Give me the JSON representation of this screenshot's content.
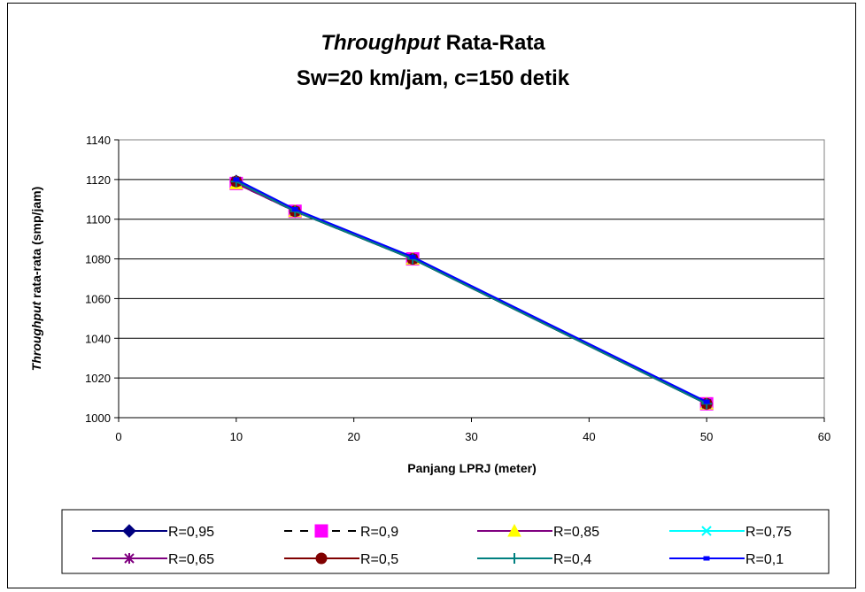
{
  "chart_data": {
    "type": "line",
    "title": {
      "italic": "Throughput",
      "rest": " Rata-Rata"
    },
    "subtitle": "Sw=20 km/jam, c=150 detik",
    "xlabel": "Panjang LPRJ (meter)",
    "ylabel": {
      "italic": "Throughput",
      "rest": " rata-rata (smp/jam)"
    },
    "xlim": [
      0,
      60
    ],
    "ylim": [
      1000,
      1140
    ],
    "xticks": [
      0,
      10,
      20,
      30,
      40,
      50,
      60
    ],
    "yticks": [
      1000,
      1020,
      1040,
      1060,
      1080,
      1100,
      1120,
      1140
    ],
    "grid": "horizontal",
    "legend_position": "bottom",
    "x": [
      10,
      15,
      25,
      50
    ],
    "series": [
      {
        "name": "R=0,95",
        "values": [
          1119,
          1104,
          1080,
          1007
        ],
        "color": "#000080",
        "marker": "diamond",
        "dash": ""
      },
      {
        "name": "R=0,9",
        "values": [
          1118,
          1104,
          1080,
          1007
        ],
        "color": "#000000",
        "marker": "square",
        "markerColor": "#ff00ff",
        "dash": "9,9"
      },
      {
        "name": "R=0,85",
        "values": [
          1118,
          1104,
          1080,
          1007
        ],
        "color": "#800080",
        "marker": "triangle",
        "markerColor": "#ffff00",
        "dash": ""
      },
      {
        "name": "R=0,75",
        "values": [
          1119,
          1104,
          1080,
          1007
        ],
        "color": "#00ffff",
        "marker": "x",
        "dash": ""
      },
      {
        "name": "R=0,65",
        "values": [
          1119,
          1104,
          1080,
          1007
        ],
        "color": "#800080",
        "marker": "star",
        "dash": ""
      },
      {
        "name": "R=0,5",
        "values": [
          1119,
          1104,
          1080,
          1007
        ],
        "color": "#800000",
        "marker": "circle",
        "dash": ""
      },
      {
        "name": "R=0,4",
        "values": [
          1119,
          1104,
          1080,
          1007
        ],
        "color": "#008080",
        "marker": "plus",
        "dash": ""
      },
      {
        "name": "R=0,1",
        "values": [
          1120,
          1105,
          1081,
          1008
        ],
        "color": "#0000ff",
        "marker": "dash",
        "dash": ""
      }
    ]
  }
}
